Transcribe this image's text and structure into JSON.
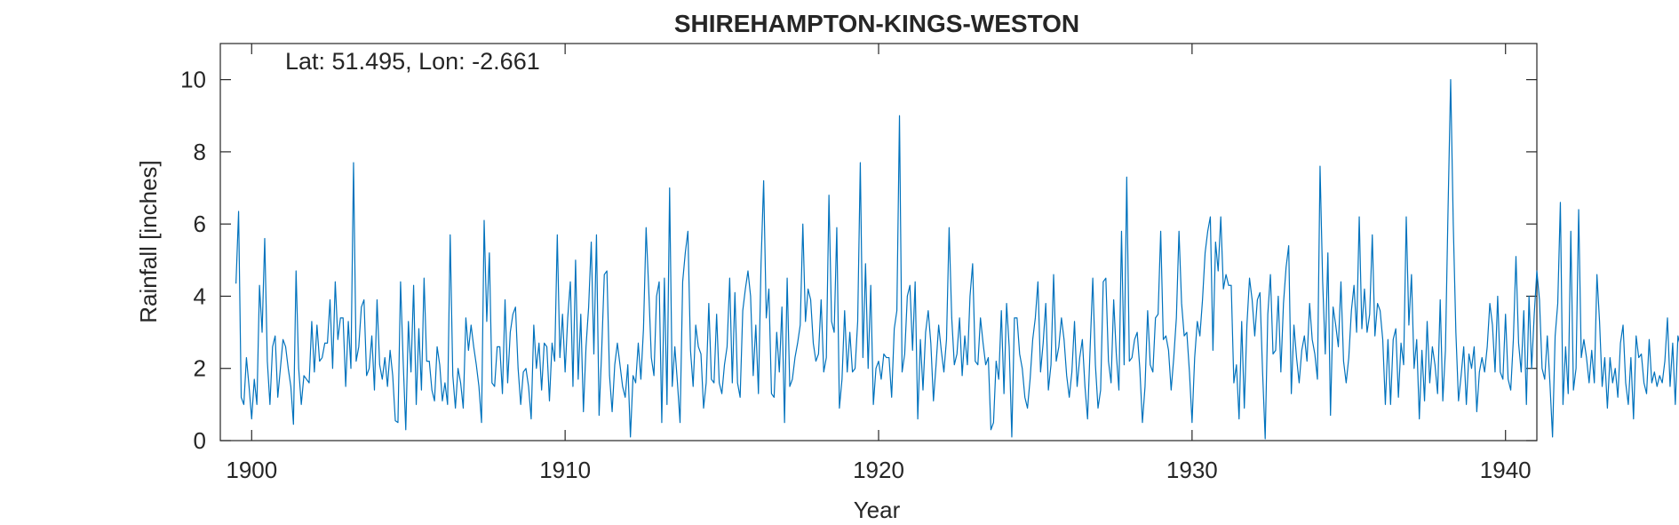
{
  "chart_data": {
    "type": "line",
    "title": "SHIREHAMPTON-KINGS-WESTON",
    "xlabel": "Year",
    "ylabel": "Rainfall [inches]",
    "annotation": "Lat: 51.495, Lon: -2.661",
    "xlim": [
      1899,
      1941
    ],
    "ylim": [
      0,
      11
    ],
    "xticks": [
      1900,
      1910,
      1920,
      1930,
      1940
    ],
    "yticks": [
      0,
      2,
      4,
      6,
      8,
      10
    ],
    "grid": false,
    "series": [
      {
        "color": "#0072BD",
        "x_start": 1899.5,
        "x_step": 0.0833333,
        "values": [
          4.35,
          6.35,
          1.2,
          1.0,
          2.3,
          1.5,
          0.6,
          1.7,
          1.0,
          4.3,
          3.0,
          5.6,
          2.2,
          1.0,
          2.6,
          2.9,
          1.2,
          2.0,
          2.8,
          2.6,
          2.0,
          1.5,
          0.45,
          4.7,
          2.0,
          1.0,
          1.8,
          1.7,
          1.6,
          3.3,
          1.9,
          3.2,
          2.2,
          2.3,
          2.7,
          2.7,
          3.9,
          2.0,
          4.4,
          2.8,
          3.4,
          3.4,
          1.5,
          3.3,
          2.0,
          7.7,
          2.2,
          2.6,
          3.7,
          3.9,
          1.8,
          2.0,
          2.9,
          1.4,
          3.9,
          2.1,
          1.7,
          2.3,
          1.5,
          2.5,
          1.8,
          0.55,
          0.5,
          4.4,
          2.2,
          0.3,
          3.3,
          1.9,
          4.3,
          1.0,
          3.1,
          1.4,
          4.5,
          2.2,
          2.2,
          1.4,
          1.1,
          2.6,
          2.1,
          1.1,
          1.6,
          1.0,
          5.7,
          1.8,
          0.9,
          2.0,
          1.6,
          0.9,
          3.4,
          2.5,
          3.2,
          2.6,
          2.1,
          1.5,
          0.5,
          6.1,
          3.3,
          5.2,
          1.6,
          1.5,
          2.6,
          2.6,
          1.3,
          3.9,
          1.6,
          3.0,
          3.5,
          3.7,
          2.0,
          1.0,
          1.9,
          2.0,
          1.5,
          0.6,
          3.2,
          2.0,
          2.7,
          1.4,
          2.7,
          2.6,
          1.1,
          2.7,
          2.2,
          5.7,
          2.3,
          3.5,
          1.9,
          3.4,
          4.4,
          1.5,
          5.0,
          1.7,
          3.5,
          0.8,
          2.6,
          3.7,
          5.5,
          2.4,
          5.7,
          0.7,
          2.5,
          4.6,
          4.7,
          1.8,
          0.8,
          2.1,
          2.7,
          2.1,
          1.5,
          1.2,
          2.1,
          0.1,
          1.8,
          1.6,
          2.7,
          1.7,
          3.1,
          5.9,
          4.2,
          2.3,
          1.8,
          4.0,
          4.4,
          0.5,
          4.5,
          1.0,
          7.0,
          1.5,
          2.6,
          1.6,
          0.5,
          4.4,
          5.2,
          5.8,
          2.5,
          1.5,
          3.2,
          2.6,
          2.4,
          0.9,
          1.6,
          3.8,
          1.7,
          1.6,
          3.5,
          1.6,
          1.3,
          2.1,
          2.6,
          4.5,
          1.6,
          4.1,
          1.6,
          1.2,
          3.6,
          4.2,
          4.7,
          4.0,
          1.8,
          3.2,
          1.3,
          4.9,
          7.2,
          3.4,
          4.2,
          1.3,
          1.2,
          3.0,
          1.9,
          3.7,
          0.5,
          4.5,
          1.5,
          1.7,
          2.3,
          2.7,
          3.2,
          6.0,
          3.3,
          4.2,
          3.9,
          2.7,
          2.2,
          2.4,
          3.9,
          1.9,
          2.3,
          6.8,
          3.3,
          3.0,
          5.9,
          0.9,
          1.7,
          3.6,
          1.9,
          3.0,
          1.9,
          2.0,
          3.3,
          7.7,
          2.3,
          4.9,
          2.0,
          4.3,
          1.0,
          2.0,
          2.2,
          1.7,
          2.4,
          2.3,
          2.3,
          1.2,
          3.1,
          3.6,
          9.0,
          1.9,
          2.4,
          4.0,
          4.3,
          2.5,
          4.4,
          0.6,
          2.8,
          1.4,
          3.0,
          3.6,
          2.7,
          1.1,
          2.1,
          3.2,
          2.5,
          1.9,
          2.8,
          5.9,
          3.4,
          2.1,
          2.4,
          3.4,
          1.8,
          2.9,
          2.1,
          4.0,
          4.9,
          2.2,
          2.1,
          3.4,
          2.7,
          2.1,
          2.3,
          0.3,
          0.5,
          2.2,
          1.7,
          3.6,
          1.3,
          3.8,
          2.6,
          0.1,
          3.4,
          3.4,
          2.4,
          2.0,
          1.2,
          0.9,
          1.7,
          2.8,
          3.4,
          4.4,
          1.9,
          2.7,
          3.8,
          1.4,
          2.1,
          4.6,
          2.2,
          2.6,
          3.4,
          2.8,
          1.8,
          1.2,
          1.9,
          3.3,
          1.5,
          2.3,
          2.8,
          1.5,
          0.6,
          2.6,
          4.5,
          2.1,
          0.9,
          1.4,
          4.4,
          4.5,
          2.2,
          1.6,
          3.9,
          2.4,
          1.4,
          5.8,
          2.1,
          7.3,
          2.2,
          2.3,
          2.8,
          3.0,
          2.0,
          0.5,
          1.5,
          3.6,
          2.1,
          1.9,
          3.4,
          3.5,
          5.8,
          2.8,
          2.9,
          2.5,
          1.4,
          2.3,
          3.4,
          5.8,
          3.8,
          2.9,
          3.0,
          1.9,
          0.5,
          2.3,
          3.3,
          2.9,
          3.9,
          5.2,
          5.8,
          6.2,
          2.5,
          5.5,
          4.7,
          6.2,
          4.2,
          4.6,
          4.3,
          4.3,
          1.6,
          2.1,
          0.6,
          3.3,
          0.9,
          3.2,
          4.5,
          3.9,
          2.9,
          3.9,
          4.1,
          1.9,
          0.05,
          3.5,
          4.6,
          2.4,
          2.5,
          4.0,
          1.9,
          3.8,
          4.8,
          5.4,
          1.3,
          3.2,
          2.3,
          1.6,
          2.5,
          2.9,
          2.2,
          3.8,
          2.8,
          2.4,
          1.7,
          7.6,
          4.4,
          2.4,
          5.2,
          0.7,
          3.7,
          3.2,
          2.6,
          4.4,
          2.2,
          1.6,
          2.3,
          3.6,
          4.3,
          3.0,
          6.2,
          3.1,
          4.2,
          3.0,
          3.5,
          5.7,
          2.9,
          3.8,
          3.6,
          2.8,
          1.0,
          2.8,
          1.0,
          2.8,
          3.1,
          1.2,
          2.7,
          2.1,
          6.2,
          3.2,
          4.6,
          2.0,
          2.8,
          0.6,
          2.5,
          1.1,
          3.3,
          1.6,
          2.6,
          2.1,
          1.3,
          3.9,
          1.1,
          2.5,
          6.4,
          10.0,
          6.0,
          3.0,
          1.1,
          1.8,
          2.6,
          1.0,
          2.4,
          2.0,
          2.6,
          0.8,
          1.9,
          2.3,
          1.9,
          2.6,
          3.8,
          3.2,
          1.9,
          4.0,
          1.9,
          1.7,
          3.5,
          1.7,
          1.4,
          2.8,
          5.1,
          2.7,
          1.9,
          3.6,
          1.0,
          4.0,
          2.0,
          3.5,
          4.7,
          3.9,
          2.0,
          1.7,
          2.9,
          1.6,
          0.1,
          2.9,
          3.8,
          6.6,
          1.0,
          2.6,
          1.3,
          5.8,
          1.4,
          2.0,
          6.4,
          2.3,
          2.8,
          2.3,
          1.6,
          2.5,
          1.6,
          4.6,
          3.3,
          1.5,
          2.3,
          0.9,
          2.3,
          1.6,
          2.0,
          1.2,
          2.7,
          3.2,
          1.6,
          1.0,
          2.3,
          0.6,
          2.9,
          2.3,
          2.4,
          1.6,
          1.3,
          2.8,
          1.6,
          1.9,
          1.5,
          1.8,
          1.6,
          2.2,
          3.4,
          1.5,
          2.7,
          1.0,
          2.9,
          2.6,
          1.4,
          2.0,
          3.3,
          1.9,
          1.2,
          1.5,
          2.2,
          6.8,
          3.3,
          1.4,
          1.8,
          1.5,
          2.4,
          2.0,
          3.1,
          1.2,
          3.0,
          1.3,
          4.2,
          2.3,
          1.4,
          2.1,
          2.6,
          5.4,
          2.0,
          1.5,
          5.1,
          3.1,
          2.3,
          1.3,
          0.7,
          3.2,
          2.6,
          4.4,
          0.6,
          4.2,
          1.7,
          2.2,
          3.6,
          1.3,
          2.4,
          4.9,
          7.5,
          5.5,
          6.0,
          4.0,
          3.5,
          2.6,
          3.6,
          1.2,
          2.0,
          2.9,
          2.6,
          3.0,
          1.6,
          2.8,
          1.0,
          4.2,
          2.6,
          4.6,
          1.5,
          5.1,
          2.0,
          4.6,
          1.5,
          2.9,
          4.0,
          1.1,
          2.4,
          4.8,
          1.6,
          2.6,
          2.7,
          2.5,
          1.9,
          2.9,
          2.3,
          2.1,
          1.6,
          1.8,
          2.5,
          3.3,
          1.4,
          1.6,
          1.9,
          4.3,
          1.0,
          0.5,
          0.2,
          2.4,
          1.8,
          3.3,
          2.8,
          2.8,
          1.7,
          6.3,
          3.5,
          3.0,
          4.4,
          5.6,
          1.5,
          2.3,
          1.4,
          2.9,
          0.8,
          2.5,
          3.3,
          4.2,
          3.6,
          1.9,
          1.5,
          0.8,
          3.1,
          5.9,
          2.6,
          2.3,
          2.7,
          2.4,
          2.5,
          2.1,
          2.3,
          2.8,
          1.4,
          0.6,
          7.1,
          2.1,
          0.05,
          1.2,
          2.9,
          5.7,
          7.8,
          1.5
        ]
      }
    ]
  }
}
